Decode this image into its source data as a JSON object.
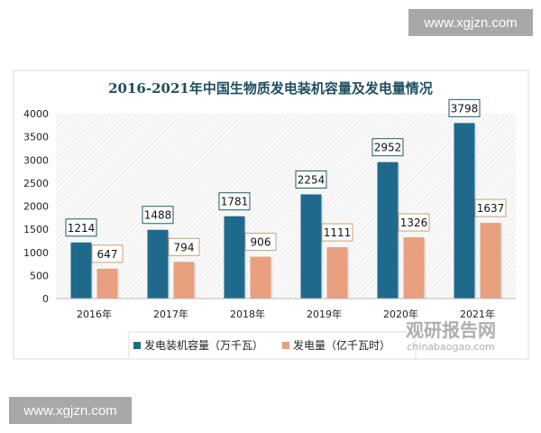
{
  "watermarks": {
    "top": "www.xgjzn.com",
    "bottom": "www.xgjzn.com",
    "logo_cn": "观研报告网",
    "logo_en": "chinabaogao.com"
  },
  "chart_data": {
    "type": "bar",
    "title": "2016-2021年中国生物质发电装机容量及发电量情况",
    "categories": [
      "2016年",
      "2017年",
      "2018年",
      "2019年",
      "2020年",
      "2021年"
    ],
    "series": [
      {
        "name": "发电装机容量（万千瓦）",
        "values": [
          1214,
          1488,
          1781,
          2254,
          2952,
          3798
        ],
        "color": "#1f6a8c"
      },
      {
        "name": "发电量（亿千瓦时）",
        "values": [
          647,
          794,
          906,
          1111,
          1326,
          1637
        ],
        "color": "#e8a07e"
      }
    ],
    "yticks": [
      "0",
      "500",
      "1000",
      "1500",
      "2000",
      "2500",
      "3000",
      "3500",
      "4000"
    ],
    "ylim": [
      0,
      4000
    ],
    "legend": "bottom",
    "grid": false
  }
}
